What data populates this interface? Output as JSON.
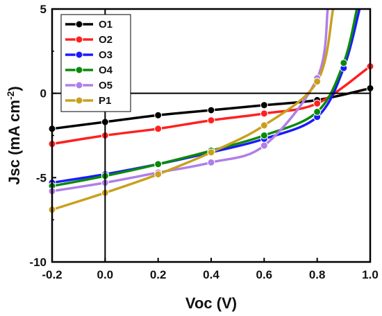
{
  "chart_data": {
    "type": "line",
    "title": "",
    "xlabel": "Voc (V)",
    "ylabel_main": "Jsc (mA cm",
    "ylabel_sup": "-2",
    "ylabel_close": ")",
    "xlim": [
      -0.2,
      1.0
    ],
    "ylim": [
      -10,
      5
    ],
    "x_ticks": [
      -0.2,
      0.0,
      0.2,
      0.4,
      0.6,
      0.8,
      1.0
    ],
    "x_tick_labels": [
      "-0.2",
      "0.0",
      "0.2",
      "0.4",
      "0.6",
      "0.8",
      "1.0"
    ],
    "y_ticks": [
      -10,
      -5,
      0,
      5
    ],
    "y_tick_labels": [
      "-10",
      "-5",
      "0",
      "5"
    ],
    "grid": false,
    "legend_position": "top-left",
    "series": [
      {
        "name": "O1",
        "color": "#000000",
        "x": [
          -0.2,
          0.0,
          0.2,
          0.4,
          0.6,
          0.8,
          1.0
        ],
        "y": [
          -2.1,
          -1.7,
          -1.3,
          -1.0,
          -0.7,
          -0.4,
          0.3
        ]
      },
      {
        "name": "O2",
        "color": "#ff2020",
        "x": [
          -0.2,
          0.0,
          0.2,
          0.4,
          0.6,
          0.8,
          1.0
        ],
        "y": [
          -3.0,
          -2.5,
          -2.1,
          -1.6,
          -1.2,
          -0.6,
          1.6
        ]
      },
      {
        "name": "O3",
        "color": "#1a1aff",
        "x": [
          -0.2,
          0.0,
          0.2,
          0.4,
          0.6,
          0.8,
          0.9,
          0.96
        ],
        "y": [
          -5.3,
          -4.8,
          -4.2,
          -3.5,
          -2.7,
          -1.4,
          1.5,
          5.0
        ]
      },
      {
        "name": "O4",
        "color": "#0a8a0a",
        "x": [
          -0.2,
          0.0,
          0.2,
          0.4,
          0.6,
          0.8,
          0.9,
          0.95
        ],
        "y": [
          -5.5,
          -4.9,
          -4.2,
          -3.4,
          -2.5,
          -1.1,
          1.8,
          5.0
        ]
      },
      {
        "name": "O5",
        "color": "#b07ee8",
        "x": [
          -0.2,
          0.0,
          0.2,
          0.4,
          0.6,
          0.8,
          0.84
        ],
        "y": [
          -5.8,
          -5.3,
          -4.7,
          -4.1,
          -3.1,
          0.9,
          5.0
        ]
      },
      {
        "name": "P1",
        "color": "#c9a01e",
        "x": [
          -0.2,
          0.0,
          0.2,
          0.4,
          0.6,
          0.8,
          0.86
        ],
        "y": [
          -6.9,
          -5.9,
          -4.8,
          -3.5,
          -1.9,
          0.7,
          5.0
        ]
      }
    ]
  }
}
